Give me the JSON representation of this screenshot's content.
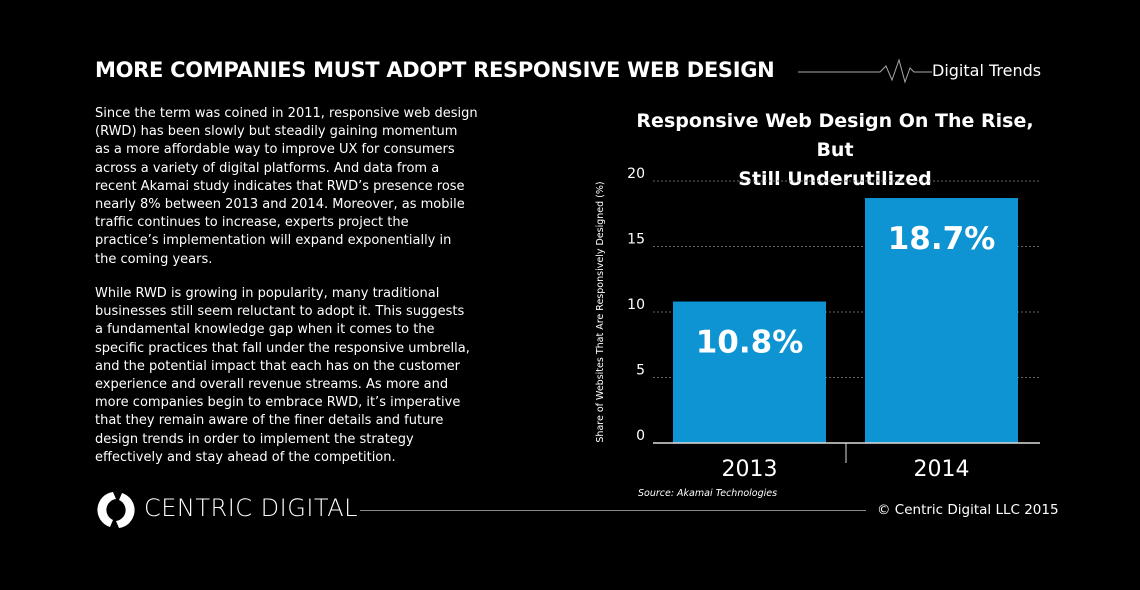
{
  "header": {
    "title": "MORE COMPANIES MUST ADOPT RESPONSIVE WEB DESIGN",
    "tag": "Digital Trends",
    "pulse_icon": "heartbeat-line-icon"
  },
  "body": {
    "paragraph1": [
      "Since the term was coined in 2011, responsive web design",
      "(RWD) has been slowly but steadily gaining momentum",
      "as a more affordable way to improve UX for consumers",
      "across a variety of digital platforms. And data from a",
      "recent Akamai study indicates that RWD’s presence rose",
      "nearly 8% between 2013 and 2014. Moreover, as mobile",
      "traffic continues to increase, experts project the",
      "practice’s implementation will expand exponentially in",
      "the coming years."
    ],
    "paragraph2": [
      "While RWD is growing in popularity, many traditional",
      "businesses still seem reluctant to adopt it. This suggests",
      "a fundamental knowledge gap when it comes to the",
      "specific practices that fall under the responsive umbrella,",
      "and the potential impact that each has on the customer",
      "experience and overall revenue streams. As more and",
      "more companies begin to embrace RWD, it’s imperative",
      "that they remain aware of the finer details and future",
      "design trends in order to implement the strategy",
      "effectively and stay ahead of the competition."
    ]
  },
  "chart_data": {
    "type": "bar",
    "title_lines": [
      "Responsive Web Design On The Rise, But",
      "Still Underutilized"
    ],
    "categories": [
      "2013",
      "2014"
    ],
    "values": [
      10.8,
      18.7
    ],
    "data_labels": [
      "10.8%",
      "18.7%"
    ],
    "ylabel": "Share of Websites That Are Responsively  Designed (%)",
    "xlabel": "",
    "ylim": [
      0,
      20
    ],
    "yticks": [
      0,
      5,
      10,
      15,
      20
    ],
    "grid": true,
    "bar_color": "#0e94d2",
    "source": "Source:  Akamai Technologies"
  },
  "footer": {
    "brand": "CENTRIC DIGITAL",
    "copyright": "© Centric Digital LLC 2015",
    "logo_icon": "centric-digital-logo-icon"
  }
}
